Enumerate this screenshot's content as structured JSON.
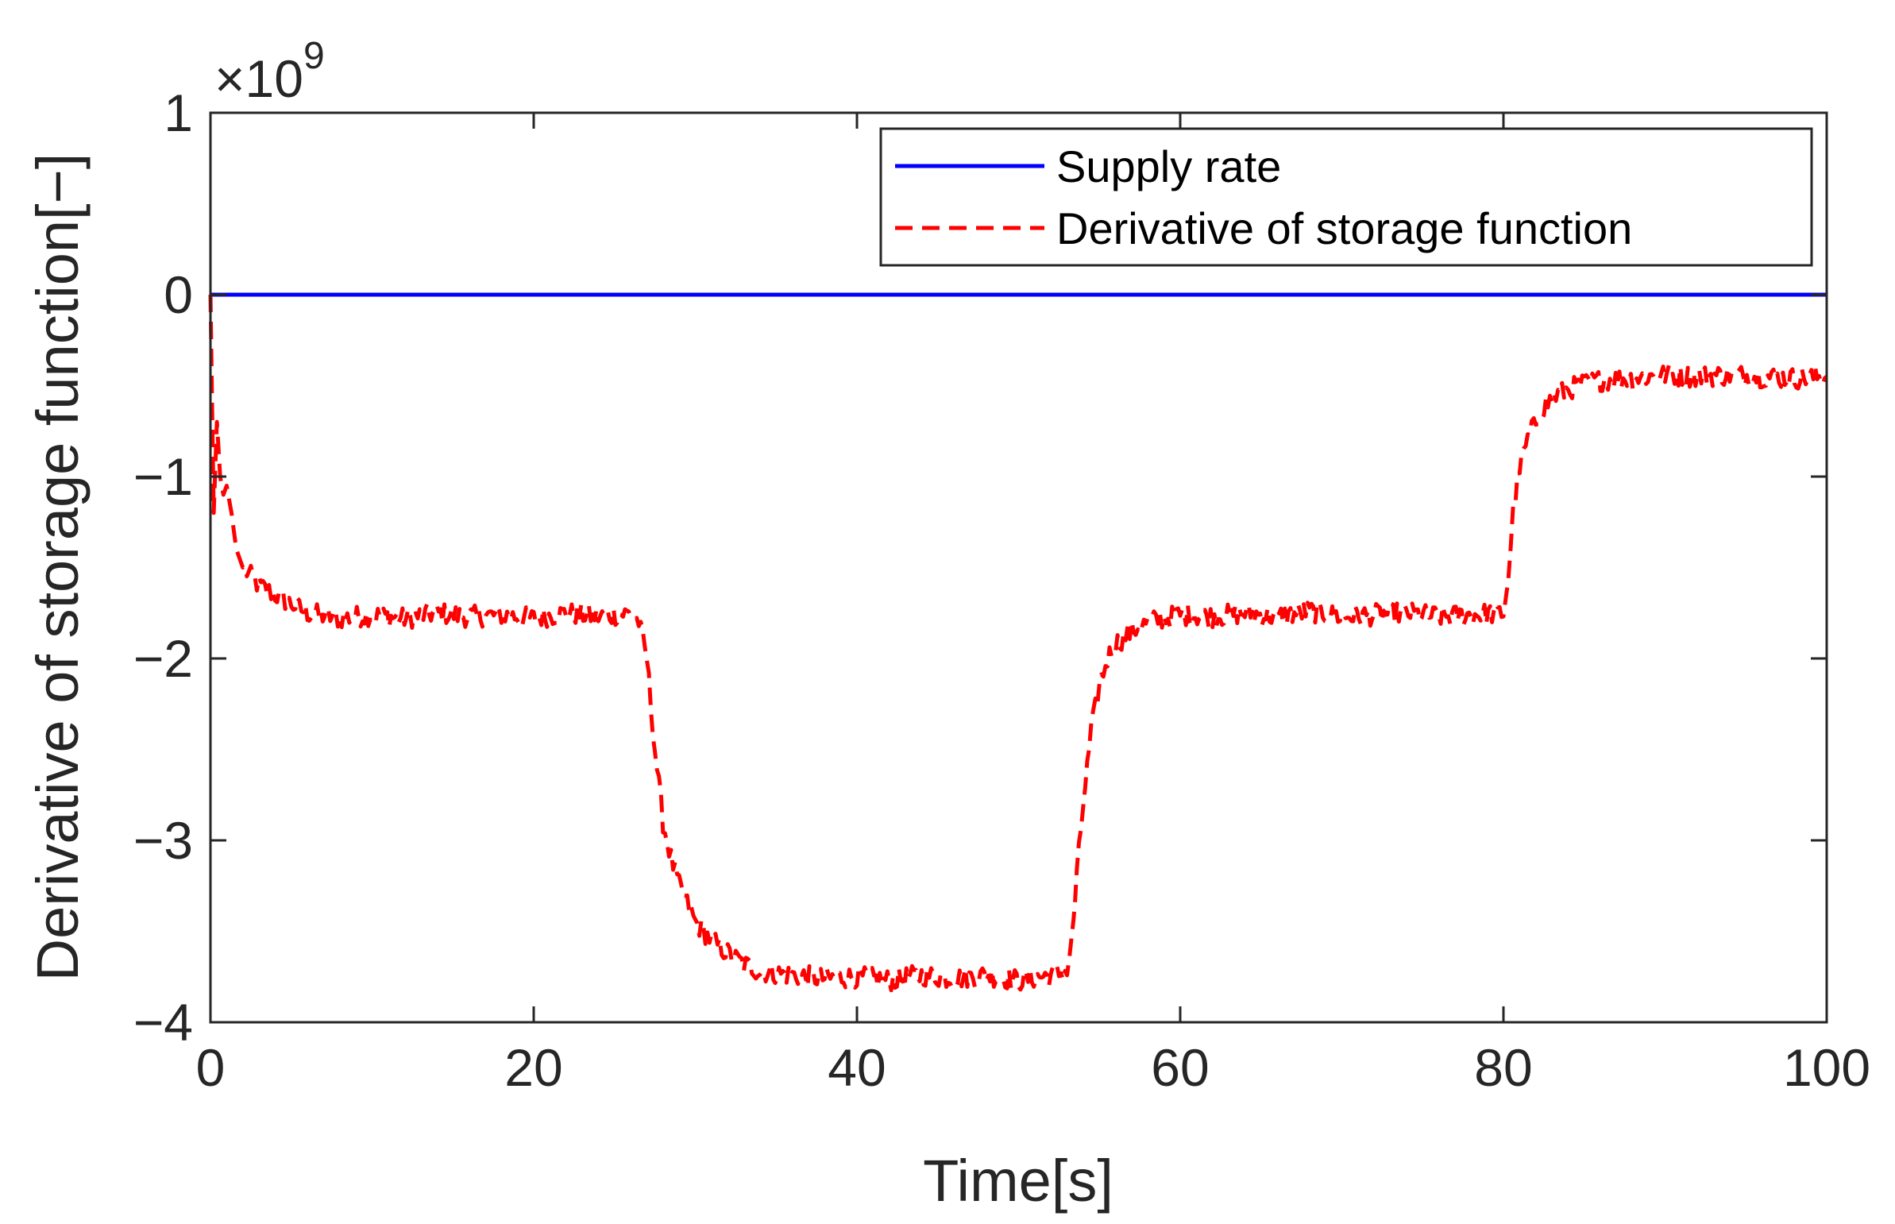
{
  "chart_data": {
    "type": "line",
    "title": "",
    "xlabel": "Time[s]",
    "ylabel": "Derivative of storage function[−]",
    "xlim": [
      0,
      100
    ],
    "ylim": [
      -4,
      1
    ],
    "y_exponent_label": {
      "base": "×10",
      "power": "9"
    },
    "xticks": [
      0,
      20,
      40,
      60,
      80,
      100
    ],
    "xtick_labels": [
      "0",
      "20",
      "40",
      "60",
      "80",
      "100"
    ],
    "yticks": [
      1,
      0,
      -1,
      -2,
      -3,
      -4
    ],
    "ytick_labels": [
      "1",
      "0",
      "−1",
      "−2",
      "−3",
      "−4"
    ],
    "grid": false,
    "legend_position": "top-right",
    "series": [
      {
        "name": "Supply rate",
        "style": "solid",
        "color": "#0000ff",
        "x": [
          0,
          100
        ],
        "y": [
          0,
          0
        ]
      },
      {
        "name": "Derivative of storage function",
        "style": "dashed",
        "color": "#ff0000",
        "x": [
          0,
          0.2,
          0.4,
          0.6,
          0.8,
          1.0,
          1.3,
          1.6,
          2.0,
          2.5,
          3,
          4,
          5,
          6,
          8,
          10,
          12,
          14,
          16,
          18,
          20,
          22,
          24,
          26,
          26.5,
          27,
          27.5,
          28,
          28.5,
          29,
          29.5,
          30,
          31,
          32,
          33,
          34,
          36,
          38,
          40,
          42,
          44,
          46,
          48,
          50,
          52,
          53,
          53.3,
          53.6,
          54,
          54.5,
          55,
          55.5,
          56,
          57,
          58,
          59,
          60,
          62,
          64,
          66,
          68,
          70,
          72,
          74,
          76,
          78,
          80,
          80.3,
          80.6,
          81,
          81.5,
          82,
          82.5,
          83,
          84,
          85,
          86,
          88,
          90,
          92,
          94,
          96,
          98,
          100
        ],
        "y": [
          0,
          -1.2,
          -0.7,
          -1.0,
          -1.1,
          -1.05,
          -1.2,
          -1.4,
          -1.5,
          -1.55,
          -1.6,
          -1.65,
          -1.7,
          -1.75,
          -1.78,
          -1.76,
          -1.78,
          -1.75,
          -1.77,
          -1.76,
          -1.78,
          -1.75,
          -1.77,
          -1.75,
          -1.8,
          -2.0,
          -2.5,
          -2.9,
          -3.1,
          -3.25,
          -3.35,
          -3.45,
          -3.55,
          -3.62,
          -3.68,
          -3.72,
          -3.74,
          -3.76,
          -3.75,
          -3.77,
          -3.74,
          -3.76,
          -3.74,
          -3.77,
          -3.74,
          -3.72,
          -3.55,
          -3.2,
          -2.8,
          -2.4,
          -2.15,
          -2.0,
          -1.92,
          -1.85,
          -1.8,
          -1.78,
          -1.76,
          -1.77,
          -1.75,
          -1.77,
          -1.74,
          -1.77,
          -1.76,
          -1.75,
          -1.77,
          -1.76,
          -1.75,
          -1.55,
          -1.2,
          -0.95,
          -0.8,
          -0.7,
          -0.62,
          -0.57,
          -0.52,
          -0.49,
          -0.47,
          -0.46,
          -0.44,
          -0.45,
          -0.44,
          -0.45,
          -0.46,
          -0.45
        ]
      }
    ]
  }
}
